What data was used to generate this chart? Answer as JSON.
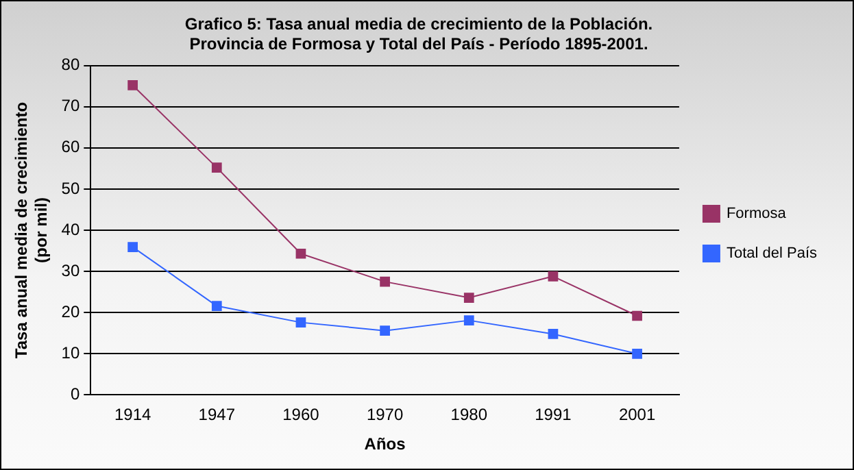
{
  "chart_data": {
    "type": "line",
    "title": "Grafico 5: Tasa anual media de crecimiento de la Población.\nProvincia de Formosa y Total del País - Período 1895-2001.",
    "xlabel": "Años",
    "ylabel": "Tasa anual media de crecimiento\n(por mil)",
    "categories": [
      "1914",
      "1947",
      "1960",
      "1970",
      "1980",
      "1991",
      "2001"
    ],
    "series": [
      {
        "name": "Formosa",
        "color": "#993366",
        "values": [
          75.2,
          55.2,
          34.3,
          27.5,
          23.6,
          28.8,
          19.2
        ]
      },
      {
        "name": "Total del País",
        "color": "#3366ff",
        "values": [
          35.9,
          21.6,
          17.6,
          15.6,
          18.1,
          14.8,
          10.0
        ]
      }
    ],
    "ylim": [
      0,
      80
    ],
    "yticks": [
      0,
      10,
      20,
      30,
      40,
      50,
      60,
      70,
      80
    ],
    "grid": "y",
    "legend": "right",
    "marker": "square",
    "line_style": "solid"
  }
}
